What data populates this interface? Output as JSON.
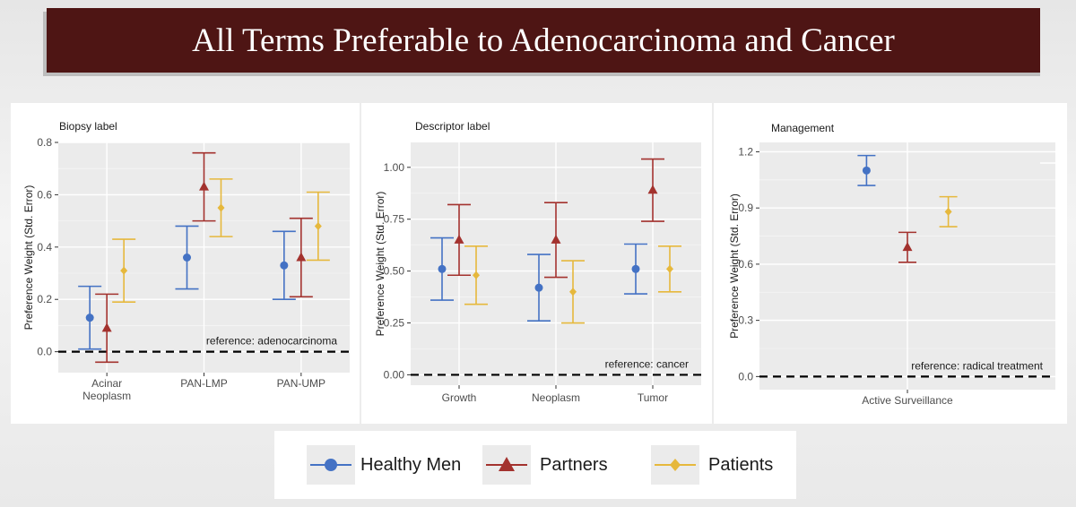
{
  "title": "All Terms Preferable to Adenocarcinoma and Cancer",
  "colors": {
    "healthy_men": "#4472c4",
    "partners": "#a3322e",
    "patients": "#e6b83c",
    "title_bg": "#4e1514",
    "panel_bg": "#ebebeb"
  },
  "legend": {
    "items": [
      {
        "label": "Healthy Men",
        "shape": "circle",
        "color": "#4472c4"
      },
      {
        "label": "Partners",
        "shape": "triangle",
        "color": "#a3322e"
      },
      {
        "label": "Patients",
        "shape": "diamond",
        "color": "#e6b83c"
      }
    ]
  },
  "chart_data": [
    {
      "type": "scatter",
      "title": "Biopsy label",
      "ylabel": "Preference Weight (Std. Error)",
      "ylim": [
        -0.08,
        0.8
      ],
      "yticks": [
        0.0,
        0.2,
        0.4,
        0.6,
        0.8
      ],
      "ytick_labels": [
        "0.0",
        "0.2",
        "0.4",
        "0.6",
        "0.8"
      ],
      "categories": [
        "Acinar\nNeoplasm",
        "PAN-LMP",
        "PAN-UMP"
      ],
      "reference_line": {
        "y": 0,
        "label": "reference: adenocarcinoma"
      },
      "series": [
        {
          "name": "Healthy Men",
          "values": [
            0.13,
            0.36,
            0.33
          ],
          "lower": [
            0.01,
            0.24,
            0.2
          ],
          "upper": [
            0.25,
            0.48,
            0.46
          ]
        },
        {
          "name": "Partners",
          "values": [
            0.09,
            0.63,
            0.36
          ],
          "lower": [
            -0.04,
            0.5,
            0.21
          ],
          "upper": [
            0.22,
            0.76,
            0.51
          ]
        },
        {
          "name": "Patients",
          "values": [
            0.31,
            0.55,
            0.48
          ],
          "lower": [
            0.19,
            0.44,
            0.35
          ],
          "upper": [
            0.43,
            0.66,
            0.61
          ]
        }
      ]
    },
    {
      "type": "scatter",
      "title": "Descriptor label",
      "ylabel": "Preference Weight (Std. Error)",
      "ylim": [
        -0.05,
        1.12
      ],
      "yticks": [
        0.0,
        0.25,
        0.5,
        0.75,
        1.0
      ],
      "ytick_labels": [
        "0.00",
        "0.25",
        "0.50",
        "0.75",
        "1.00"
      ],
      "categories": [
        "Growth",
        "Neoplasm",
        "Tumor"
      ],
      "reference_line": {
        "y": 0,
        "label": "reference: cancer"
      },
      "series": [
        {
          "name": "Healthy Men",
          "values": [
            0.51,
            0.42,
            0.51
          ],
          "lower": [
            0.36,
            0.26,
            0.39
          ],
          "upper": [
            0.66,
            0.58,
            0.63
          ]
        },
        {
          "name": "Partners",
          "values": [
            0.65,
            0.65,
            0.89
          ],
          "lower": [
            0.48,
            0.47,
            0.74
          ],
          "upper": [
            0.82,
            0.83,
            1.04
          ]
        },
        {
          "name": "Patients",
          "values": [
            0.48,
            0.4,
            0.51
          ],
          "lower": [
            0.34,
            0.25,
            0.4
          ],
          "upper": [
            0.62,
            0.55,
            0.62
          ]
        }
      ]
    },
    {
      "type": "scatter",
      "title": "Management",
      "ylabel": "Preference Weight (Std. Error)",
      "ylim": [
        -0.07,
        1.25
      ],
      "yticks": [
        0.0,
        0.3,
        0.6,
        0.9,
        1.2
      ],
      "ytick_labels": [
        "0.0",
        "0.3",
        "0.6",
        "0.9",
        "1.2"
      ],
      "categories": [
        "Active Surveillance"
      ],
      "reference_line": {
        "y": 0,
        "label": "reference: radical treatment"
      },
      "series": [
        {
          "name": "Healthy Men",
          "values": [
            1.1
          ],
          "lower": [
            1.02
          ],
          "upper": [
            1.18
          ]
        },
        {
          "name": "Partners",
          "values": [
            0.69
          ],
          "lower": [
            0.61
          ],
          "upper": [
            0.77
          ]
        },
        {
          "name": "Patients",
          "values": [
            0.88
          ],
          "lower": [
            0.8
          ],
          "upper": [
            0.96
          ]
        }
      ]
    }
  ]
}
